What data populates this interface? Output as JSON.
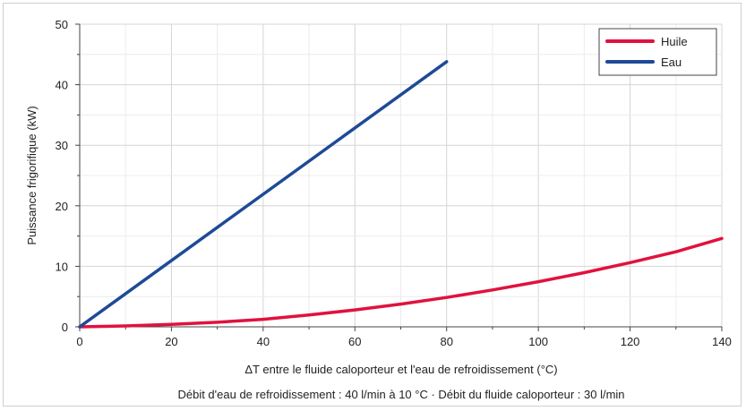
{
  "chart_data": {
    "type": "line",
    "xlabel": "ΔT entre le fluide caloporteur et l'eau de refroidissement (°C)",
    "ylabel": "Puissance frigorifique (kW)",
    "footnote": "Débit d'eau de refroidissement : 40 l/min à 10 °C · Débit du fluide caloporteur : 30 l/min",
    "xlim": [
      0,
      140
    ],
    "ylim": [
      0,
      50
    ],
    "x_ticks": [
      0,
      20,
      40,
      60,
      80,
      100,
      120,
      140
    ],
    "y_ticks": [
      0,
      10,
      20,
      30,
      40,
      50
    ],
    "x_ticks_labels": [
      "0",
      "20",
      "40",
      "60",
      "80",
      "100",
      "120",
      "140"
    ],
    "y_ticks_labels": [
      "0",
      "10",
      "20",
      "30",
      "40",
      "50"
    ],
    "grid": true,
    "legend_position": "top-right",
    "series": [
      {
        "name": "Huile",
        "color": "#e0123e",
        "x": [
          0,
          10,
          20,
          30,
          40,
          50,
          60,
          70,
          80,
          90,
          100,
          110,
          120,
          130,
          140
        ],
        "y": [
          0,
          0.15,
          0.4,
          0.75,
          1.25,
          1.95,
          2.8,
          3.75,
          4.85,
          6.1,
          7.45,
          8.95,
          10.6,
          12.4,
          14.6
        ]
      },
      {
        "name": "Eau",
        "color": "#1e4a96",
        "x": [
          0,
          80
        ],
        "y": [
          0,
          43.8
        ]
      }
    ]
  }
}
